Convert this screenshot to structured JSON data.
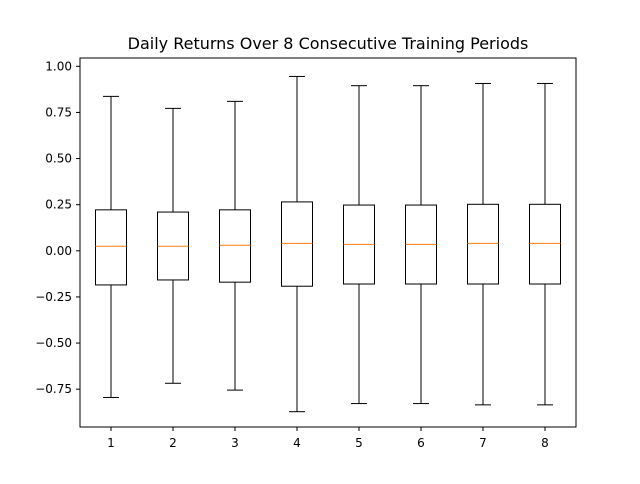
{
  "chart_data": {
    "type": "boxplot",
    "title": "Daily Returns Over 8 Consecutive Training Periods",
    "xlabel": "",
    "ylabel": "",
    "categories": [
      "1",
      "2",
      "3",
      "4",
      "5",
      "6",
      "7",
      "8"
    ],
    "ylim": [
      -0.955,
      1.045
    ],
    "yticks": [
      -0.75,
      -0.5,
      -0.25,
      0.0,
      0.25,
      0.5,
      0.75,
      1.0
    ],
    "ytick_labels": [
      "−0.75",
      "−0.50",
      "−0.25",
      "0.00",
      "0.25",
      "0.50",
      "0.75",
      "1.00"
    ],
    "grid": false,
    "boxes": [
      {
        "label": "1",
        "whisker_low": -0.795,
        "q1": -0.185,
        "median": 0.025,
        "q3": 0.222,
        "whisker_high": 0.837
      },
      {
        "label": "2",
        "whisker_low": -0.718,
        "q1": -0.158,
        "median": 0.025,
        "q3": 0.21,
        "whisker_high": 0.772
      },
      {
        "label": "3",
        "whisker_low": -0.755,
        "q1": -0.17,
        "median": 0.03,
        "q3": 0.222,
        "whisker_high": 0.81
      },
      {
        "label": "4",
        "whisker_low": -0.872,
        "q1": -0.192,
        "median": 0.04,
        "q3": 0.265,
        "whisker_high": 0.945
      },
      {
        "label": "5",
        "whisker_low": -0.828,
        "q1": -0.18,
        "median": 0.035,
        "q3": 0.248,
        "whisker_high": 0.895
      },
      {
        "label": "6",
        "whisker_low": -0.828,
        "q1": -0.18,
        "median": 0.035,
        "q3": 0.248,
        "whisker_high": 0.895
      },
      {
        "label": "7",
        "whisker_low": -0.835,
        "q1": -0.18,
        "median": 0.04,
        "q3": 0.252,
        "whisker_high": 0.907
      },
      {
        "label": "8",
        "whisker_low": -0.835,
        "q1": -0.18,
        "median": 0.04,
        "q3": 0.252,
        "whisker_high": 0.907
      }
    ],
    "colors": {
      "box": "#000000",
      "median": "#ff7f0e",
      "axes": "#000000",
      "background": "#ffffff"
    }
  }
}
